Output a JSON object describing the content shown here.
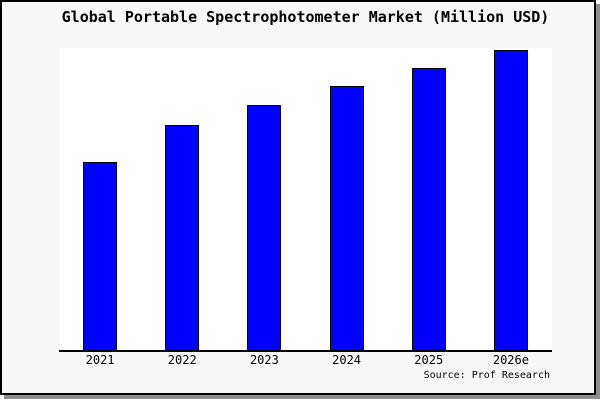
{
  "title": "Global Portable Spectrophotometer Market (Million USD)",
  "source_credit": "Source: Prof Research",
  "colors": {
    "bar_fill": "#0000ff",
    "bar_border": "#000000",
    "frame_background": "#f8f8f8",
    "plot_background": "#ffffff",
    "frame_border": "#000000",
    "frame_shadow": "#8f8f8f",
    "axis_line": "#000000"
  },
  "chart_data": {
    "type": "bar",
    "title": "Global Portable Spectrophotometer Market (Million USD)",
    "categories": [
      "2021",
      "2022",
      "2023",
      "2024",
      "2025",
      "2026e"
    ],
    "values": [
      62.7,
      75.0,
      81.7,
      88.0,
      94.0,
      100.0
    ],
    "xlabel": "",
    "ylabel": "",
    "ylim": [
      0,
      100.7
    ],
    "y_axis_visible": false,
    "grid": false,
    "legend": false,
    "bar_color": "#0000ff",
    "bar_border_color": "#000000",
    "annotation": "Source: Prof Research"
  }
}
